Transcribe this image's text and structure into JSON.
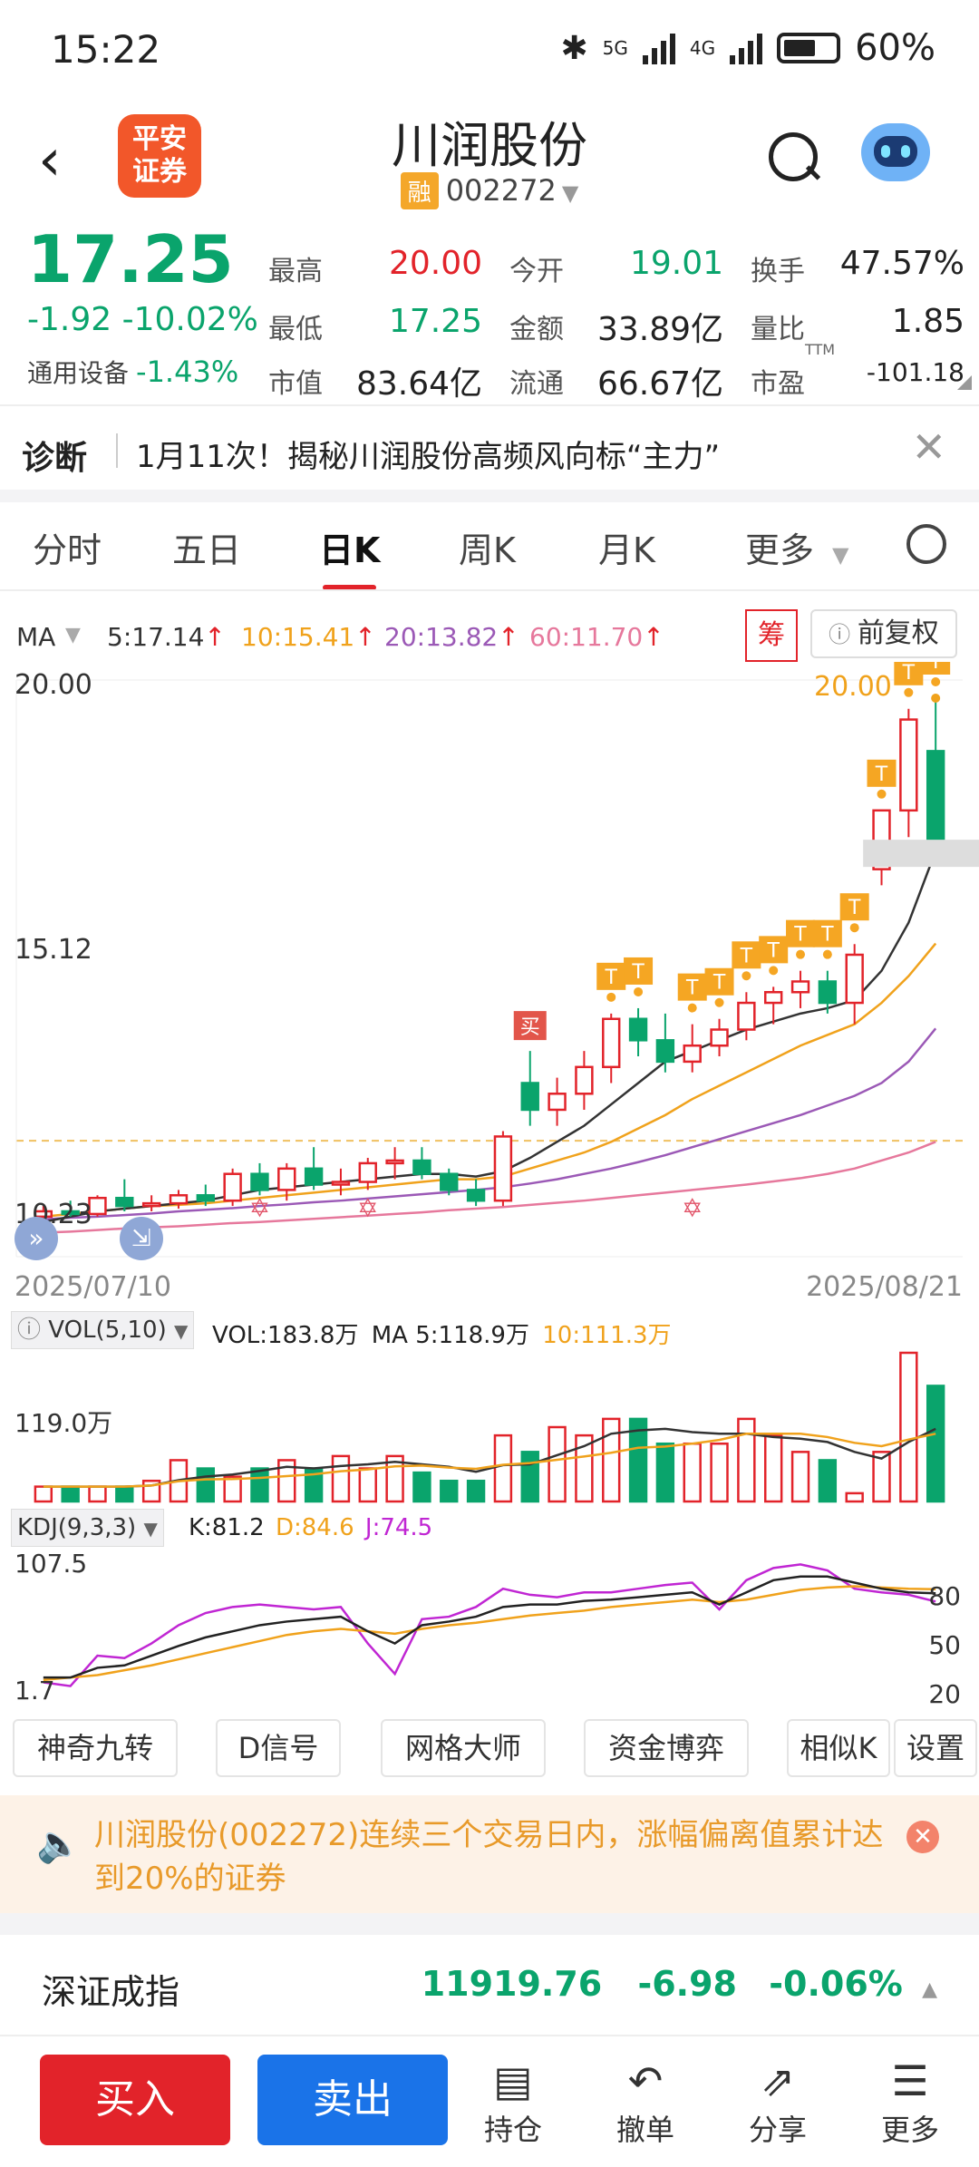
{
  "status": {
    "time": "15:22",
    "net1": "5G",
    "net2": "4G",
    "battery": "60%"
  },
  "header": {
    "back_icon": "chevron-left-icon",
    "broker_logo_line1": "平安",
    "broker_logo_line2": "证券",
    "stock_name": "川润股份",
    "margin_badge": "融",
    "stock_code": "002272"
  },
  "quote": {
    "price": "17.25",
    "change": "-1.92",
    "change_pct": "-10.02%",
    "sector_name": "通用设备",
    "sector_pct": "-1.43%",
    "fields": [
      {
        "label": "最高",
        "value": "20.00",
        "color": "#e2232a"
      },
      {
        "label": "今开",
        "value": "19.01",
        "color": "#0aa46c"
      },
      {
        "label": "换手",
        "value": "47.57%",
        "color": "#222"
      },
      {
        "label": "最低",
        "value": "17.25",
        "color": "#0aa46c"
      },
      {
        "label": "金额",
        "value": "33.89亿",
        "color": "#222"
      },
      {
        "label": "量比",
        "value": "1.85",
        "color": "#222"
      },
      {
        "label": "市值",
        "value": "83.64亿",
        "color": "#222"
      },
      {
        "label": "流通",
        "value": "66.67亿",
        "color": "#222"
      },
      {
        "label": "市盈",
        "value": "-101.18",
        "color": "#222"
      }
    ],
    "ttm": "TTM"
  },
  "diagnosis": {
    "title": "诊断",
    "text": "1月11次！揭秘川润股份高频风向标“主力”"
  },
  "tabs": [
    "分时",
    "五日",
    "日K",
    "周K",
    "月K",
    "更多"
  ],
  "ma": {
    "label": "MA",
    "ma5": "5:17.14",
    "ma10": "10:15.41",
    "ma20": "20:13.82",
    "ma60": "60:11.70",
    "chou": "筹",
    "fuquan": "前复权"
  },
  "chart_data": {
    "type": "candlestick",
    "y_max_label": "20.00",
    "y_mid_label": "15.12",
    "y_min_label": "10.23",
    "high_marker": "20.00",
    "buy_marker": "买",
    "t_marker": "T",
    "start_date": "2025/07/10",
    "end_date": "2025/08/21",
    "ylim": [
      10.23,
      20.0
    ],
    "candles": [
      [
        10.3,
        10.5,
        10.2,
        10.4
      ],
      [
        10.4,
        10.6,
        10.3,
        10.35
      ],
      [
        10.35,
        10.7,
        10.3,
        10.65
      ],
      [
        10.65,
        11.0,
        10.4,
        10.5
      ],
      [
        10.5,
        10.7,
        10.4,
        10.55
      ],
      [
        10.55,
        10.8,
        10.45,
        10.7
      ],
      [
        10.7,
        10.9,
        10.5,
        10.6
      ],
      [
        10.6,
        11.2,
        10.5,
        11.1
      ],
      [
        11.1,
        11.3,
        10.7,
        10.8
      ],
      [
        10.8,
        11.3,
        10.6,
        11.2
      ],
      [
        11.2,
        11.6,
        10.8,
        10.9
      ],
      [
        10.9,
        11.2,
        10.7,
        10.95
      ],
      [
        10.95,
        11.4,
        10.8,
        11.3
      ],
      [
        11.3,
        11.6,
        11.0,
        11.35
      ],
      [
        11.35,
        11.6,
        11.0,
        11.1
      ],
      [
        11.1,
        11.2,
        10.7,
        10.8
      ],
      [
        10.8,
        11.0,
        10.5,
        10.6
      ],
      [
        10.6,
        11.9,
        10.5,
        11.8
      ],
      [
        12.8,
        13.4,
        12.0,
        12.3
      ],
      [
        12.3,
        12.9,
        12.0,
        12.6
      ],
      [
        12.6,
        13.4,
        12.3,
        13.1
      ],
      [
        13.1,
        14.1,
        12.8,
        14.0
      ],
      [
        14.0,
        14.2,
        13.3,
        13.6
      ],
      [
        13.6,
        14.1,
        13.0,
        13.2
      ],
      [
        13.2,
        13.9,
        13.0,
        13.5
      ],
      [
        13.5,
        14.0,
        13.3,
        13.8
      ],
      [
        13.8,
        14.5,
        13.6,
        14.3
      ],
      [
        14.3,
        14.6,
        13.9,
        14.5
      ],
      [
        14.5,
        14.9,
        14.2,
        14.7
      ],
      [
        14.7,
        14.9,
        14.1,
        14.3
      ],
      [
        14.3,
        15.4,
        13.9,
        15.2
      ],
      [
        16.8,
        17.9,
        16.5,
        17.9
      ],
      [
        17.9,
        19.8,
        17.4,
        19.6
      ],
      [
        19.01,
        20.0,
        17.25,
        17.25
      ]
    ],
    "ma5_series": [
      10.2,
      10.3,
      10.4,
      10.45,
      10.5,
      10.55,
      10.6,
      10.7,
      10.8,
      10.85,
      10.9,
      10.95,
      11.0,
      11.05,
      11.1,
      11.1,
      11.05,
      11.15,
      11.4,
      11.7,
      12.0,
      12.4,
      12.8,
      13.2,
      13.4,
      13.6,
      13.8,
      13.95,
      14.1,
      14.2,
      14.35,
      14.9,
      15.8,
      17.14
    ],
    "ma10_series": [
      10.3,
      10.35,
      10.4,
      10.45,
      10.5,
      10.52,
      10.55,
      10.6,
      10.65,
      10.7,
      10.75,
      10.8,
      10.85,
      10.9,
      10.95,
      11.0,
      11.0,
      11.05,
      11.2,
      11.35,
      11.5,
      11.7,
      11.95,
      12.2,
      12.5,
      12.75,
      13.0,
      13.25,
      13.5,
      13.7,
      13.9,
      14.3,
      14.8,
      15.41
    ],
    "ma20_series": [
      10.25,
      10.28,
      10.3,
      10.33,
      10.36,
      10.4,
      10.43,
      10.46,
      10.5,
      10.53,
      10.57,
      10.6,
      10.64,
      10.68,
      10.72,
      10.76,
      10.8,
      10.85,
      10.92,
      11.0,
      11.1,
      11.2,
      11.32,
      11.45,
      11.6,
      11.75,
      11.9,
      12.05,
      12.2,
      12.38,
      12.56,
      12.8,
      13.2,
      13.82
    ],
    "ma60_series": [
      10.0,
      10.02,
      10.05,
      10.08,
      10.1,
      10.12,
      10.15,
      10.18,
      10.2,
      10.23,
      10.26,
      10.29,
      10.32,
      10.35,
      10.38,
      10.42,
      10.45,
      10.48,
      10.52,
      10.56,
      10.6,
      10.65,
      10.7,
      10.75,
      10.8,
      10.85,
      10.9,
      10.96,
      11.02,
      11.1,
      11.2,
      11.35,
      11.5,
      11.7
    ]
  },
  "volume": {
    "label": "VOL(5,10)",
    "vol": "VOL:183.8万",
    "ma5": "MA 5:118.9万",
    "ma10": "10:111.3万",
    "axis_label": "119.0万",
    "values": [
      18,
      18,
      18,
      18,
      25,
      50,
      40,
      30,
      40,
      50,
      40,
      55,
      40,
      55,
      35,
      25,
      25,
      80,
      60,
      90,
      80,
      100,
      100,
      70,
      70,
      70,
      100,
      80,
      60,
      50,
      10,
      60,
      180,
      140
    ]
  },
  "kdj": {
    "label": "KDJ(9,3,3)",
    "k": "K:81.2",
    "d": "D:84.6",
    "j": "J:74.5",
    "axis_top": "107.5",
    "axis_bottom": "1.7",
    "r80": "80",
    "r50": "50",
    "r20": "20",
    "k_series": [
      12,
      12,
      20,
      22,
      30,
      38,
      45,
      50,
      55,
      58,
      60,
      62,
      50,
      40,
      55,
      58,
      62,
      70,
      72,
      72,
      75,
      76,
      78,
      80,
      82,
      72,
      82,
      92,
      95,
      95,
      90,
      85,
      82,
      81.2
    ],
    "d_series": [
      10,
      12,
      14,
      18,
      22,
      27,
      32,
      37,
      42,
      47,
      50,
      52,
      50,
      48,
      52,
      55,
      57,
      60,
      63,
      65,
      67,
      70,
      72,
      74,
      76,
      74,
      76,
      80,
      84,
      86,
      87,
      86,
      85,
      84.6
    ],
    "j_series": [
      8,
      5,
      30,
      28,
      40,
      55,
      65,
      70,
      72,
      70,
      68,
      70,
      40,
      15,
      60,
      62,
      70,
      85,
      80,
      78,
      82,
      82,
      85,
      88,
      90,
      68,
      92,
      102,
      105,
      100,
      85,
      82,
      80,
      74.5
    ]
  },
  "tools": [
    "神奇九转",
    "D信号",
    "网格大师",
    "资金博弈",
    "相似K",
    "设置"
  ],
  "alert": {
    "text": "川润股份(002272)连续三个交易日内，涨幅偏离值累计达到20%的证券"
  },
  "index": {
    "name": "深证成指",
    "value": "11919.76",
    "change": "-6.98",
    "pct": "-0.06%"
  },
  "bottom": {
    "buy": "买入",
    "sell": "卖出",
    "hold": "持仓",
    "cancel": "撤单",
    "share": "分享",
    "more": "更多"
  }
}
